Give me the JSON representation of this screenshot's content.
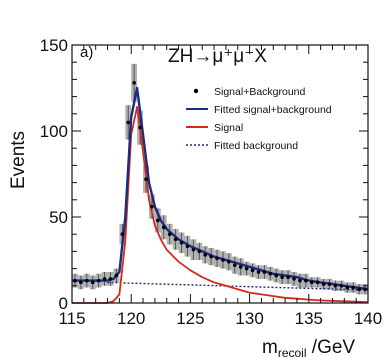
{
  "chart_data": {
    "type": "line",
    "panel_label": "a)",
    "process_label": "ZH→μ⁺μ⁻X",
    "xlabel_main": "m",
    "xlabel_sub": "recoil",
    "xlabel_unit": " /GeV",
    "ylabel": "Events",
    "xlim": [
      115,
      140
    ],
    "ylim": [
      0,
      150
    ],
    "xticks": [
      115,
      120,
      125,
      130,
      135,
      140
    ],
    "yticks": [
      0,
      50,
      100,
      150
    ],
    "grid": false,
    "legend_position": "top-right",
    "legend": [
      {
        "label": "Signal+Background",
        "style": "marker",
        "color": "#000000"
      },
      {
        "label": "Fitted signal+background",
        "style": "line",
        "color": "#1c2a80"
      },
      {
        "label": "Signal",
        "style": "line",
        "color": "#d42a1e"
      },
      {
        "label": "Fitted background",
        "style": "dotted",
        "color": "#1c2a80"
      }
    ],
    "series": [
      {
        "name": "Signal+Background",
        "x": [
          115.25,
          115.75,
          116.25,
          116.75,
          117.25,
          117.75,
          118.25,
          118.75,
          119.25,
          119.75,
          120.25,
          120.75,
          121.25,
          121.75,
          122.25,
          122.75,
          123.25,
          123.75,
          124.25,
          124.75,
          125.25,
          125.75,
          126.25,
          126.75,
          127.25,
          127.75,
          128.25,
          128.75,
          129.25,
          129.75,
          130.25,
          130.75,
          131.25,
          131.75,
          132.25,
          132.75,
          133.25,
          133.75,
          134.25,
          134.75,
          135.25,
          135.75,
          136.25,
          136.75,
          137.25,
          137.75,
          138.25,
          138.75,
          139.25,
          139.75
        ],
        "y": [
          13,
          12,
          13,
          12,
          13,
          14,
          14,
          16,
          40,
          105,
          128,
          102,
          72,
          56,
          48,
          44,
          40,
          37,
          35,
          33,
          31,
          30,
          28,
          27,
          26,
          25,
          24,
          22,
          21,
          20,
          19,
          18,
          18,
          17,
          16,
          15,
          15,
          14,
          13,
          13,
          12,
          12,
          11,
          11,
          10,
          10,
          9,
          9,
          8,
          8
        ],
        "errors": [
          4,
          4,
          4,
          4,
          4,
          4,
          4,
          4,
          6,
          10,
          11,
          10,
          8,
          7,
          7,
          7,
          6,
          6,
          6,
          6,
          6,
          5,
          5,
          5,
          5,
          5,
          5,
          5,
          5,
          4,
          4,
          4,
          4,
          4,
          4,
          4,
          4,
          4,
          4,
          4,
          3,
          3,
          3,
          3,
          3,
          3,
          3,
          3,
          3,
          3
        ]
      },
      {
        "name": "Fitted signal+background",
        "x": [
          115,
          116,
          117,
          118,
          118.5,
          119,
          119.5,
          120,
          120.5,
          121,
          121.5,
          122,
          122.5,
          123,
          124,
          125,
          126,
          127,
          128,
          129,
          130,
          131,
          132,
          133,
          134,
          135,
          136,
          137,
          138,
          139,
          140
        ],
        "y": [
          13,
          13,
          13,
          13,
          14,
          18,
          50,
          108,
          125,
          98,
          70,
          56,
          48,
          43,
          37,
          33,
          30,
          27,
          25,
          23,
          21,
          19,
          17,
          16,
          15,
          13,
          12,
          11,
          10,
          9,
          8
        ]
      },
      {
        "name": "Signal",
        "x": [
          115,
          117,
          118,
          118.5,
          119,
          119.5,
          120,
          120.5,
          121,
          121.5,
          122,
          122.5,
          123,
          124,
          125,
          126,
          127,
          128,
          129,
          130,
          131,
          132,
          133,
          134,
          135,
          136,
          137,
          138,
          139,
          140
        ],
        "y": [
          0,
          0,
          0,
          1,
          5,
          36,
          98,
          114,
          88,
          60,
          45,
          37,
          31,
          24,
          19,
          15,
          12,
          10,
          8,
          6,
          5,
          4,
          3,
          2.5,
          2,
          1.5,
          1.2,
          1,
          0.8,
          0.5
        ]
      },
      {
        "name": "Fitted background",
        "x": [
          118,
          120,
          125,
          130,
          135,
          140
        ],
        "y": [
          12,
          11.5,
          10.5,
          9.5,
          8.5,
          7.5
        ]
      }
    ]
  }
}
